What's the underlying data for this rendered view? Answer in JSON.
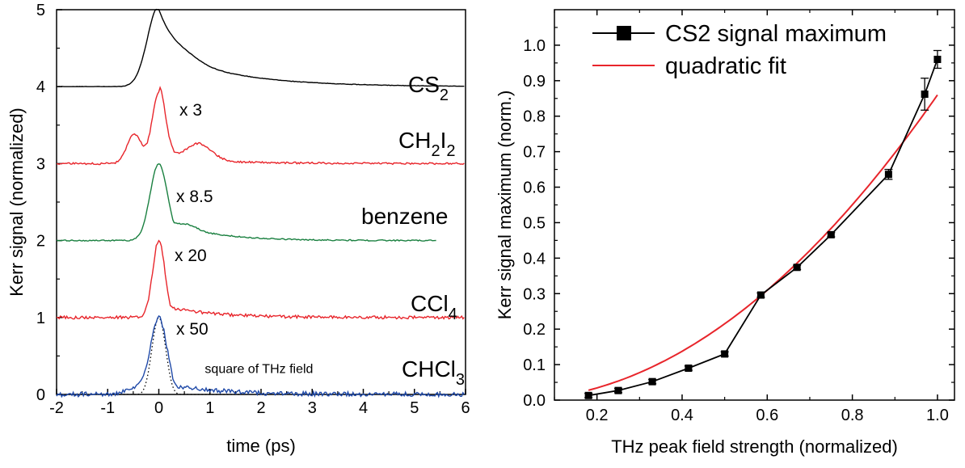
{
  "chart_data": [
    {
      "type": "line",
      "xlabel": "time (ps)",
      "ylabel": "Kerr signal (normalized)",
      "xlim": [
        -2,
        6
      ],
      "ylim": [
        0,
        5
      ],
      "xticks": [
        "-2",
        "-1",
        "0",
        "1",
        "2",
        "3",
        "4",
        "5",
        "6"
      ],
      "yticks": [
        "0",
        "1",
        "2",
        "3",
        "4",
        "5"
      ],
      "series": [
        {
          "name": "CS",
          "sub": "2",
          "offset": 4,
          "scale": "",
          "color": "#000000",
          "shape": "cs2",
          "x_end": 6.0
        },
        {
          "name": "CH",
          "sub": "2",
          "name2": "I",
          "sub2": "2",
          "offset": 3,
          "scale": "x 3",
          "color": "#e8252b",
          "shape": "ch2i2",
          "x_end": 6.0
        },
        {
          "name": "benzene",
          "sub": "",
          "offset": 2,
          "scale": "x 8.5",
          "color": "#1a8040",
          "shape": "benzene",
          "x_end": 5.45
        },
        {
          "name": "CCl",
          "sub": "4",
          "offset": 1,
          "scale": "x 20",
          "color": "#e8252b",
          "shape": "ccl4",
          "x_end": 6.0
        },
        {
          "name": "CHCl",
          "sub": "3",
          "offset": 0,
          "scale": "x 50",
          "color": "#1f49a8",
          "shape": "chcl3",
          "x_end": 6.0
        }
      ],
      "annotations": [
        {
          "text": "square of THz field",
          "style": "dotted",
          "color": "#000000"
        }
      ]
    },
    {
      "type": "line",
      "xlabel": "THz peak field strength (normalized)",
      "ylabel": "Kerr signal maximum (norm.)",
      "xlim": [
        0.1,
        1.04
      ],
      "ylim": [
        0.0,
        1.1
      ],
      "xticks": [
        "0.2",
        "0.4",
        "0.6",
        "0.8",
        "1.0"
      ],
      "yticks": [
        "0.0",
        "0.1",
        "0.2",
        "0.3",
        "0.4",
        "0.5",
        "0.6",
        "0.7",
        "0.8",
        "0.9",
        "1.0"
      ],
      "legend_position": "top-left",
      "series": [
        {
          "name": "CS2 signal maximum",
          "color": "#000000",
          "marker": "square",
          "x": [
            0.18,
            0.25,
            0.33,
            0.415,
            0.5,
            0.585,
            0.67,
            0.75,
            0.885,
            0.97,
            1.0
          ],
          "y": [
            0.013,
            0.027,
            0.052,
            0.09,
            0.13,
            0.296,
            0.374,
            0.466,
            0.636,
            0.862,
            0.96
          ],
          "err": [
            0.006,
            0.006,
            0.006,
            0.006,
            0.006,
            0.006,
            0.006,
            0.006,
            0.014,
            0.045,
            0.025
          ]
        },
        {
          "name": "quadratic fit",
          "color": "#e8252b",
          "marker": "none",
          "x_range": [
            0.18,
            1.0
          ],
          "coef": 0.86
        }
      ]
    }
  ]
}
